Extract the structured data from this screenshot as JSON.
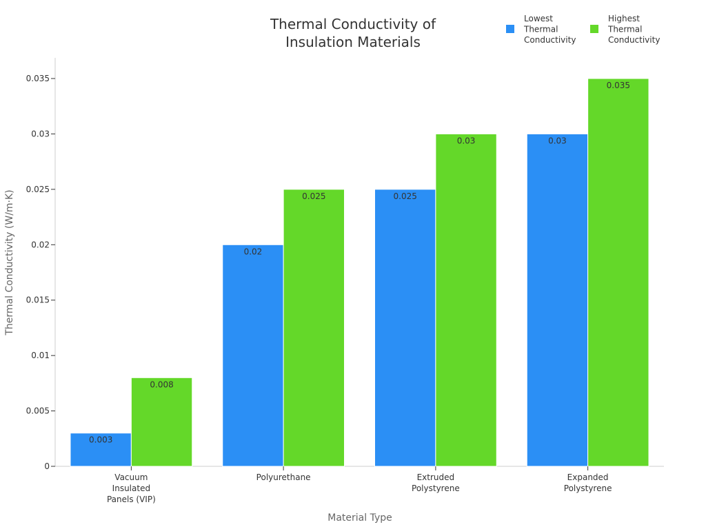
{
  "chart_data": {
    "type": "bar",
    "title": "Thermal Conductivity of Insulation Materials",
    "xlabel": "Material Type",
    "ylabel": "Thermal Conductivity (W/m·K)",
    "categories": [
      "Vacuum Insulated Panels (VIP)",
      "Polyurethane",
      "Extruded Polystyrene",
      "Expanded Polystyrene"
    ],
    "series": [
      {
        "name": "Lowest Thermal Conductivity",
        "color": "#2b8ff5",
        "values": [
          0.003,
          0.02,
          0.025,
          0.03
        ]
      },
      {
        "name": "Highest Thermal Conductivity",
        "color": "#64d829",
        "values": [
          0.008,
          0.025,
          0.03,
          0.035
        ]
      }
    ],
    "ylim": [
      0,
      0.035
    ],
    "yticks": [
      "0",
      "0.005",
      "0.01",
      "0.015",
      "0.02",
      "0.025",
      "0.03",
      "0.035"
    ],
    "grid": false,
    "legend_position": "top-right"
  }
}
